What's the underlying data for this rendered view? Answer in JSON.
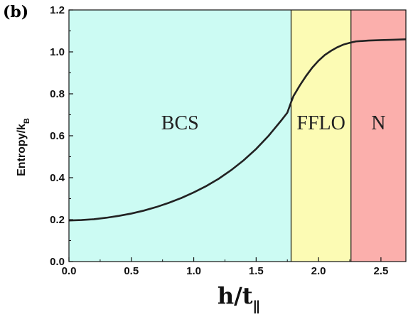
{
  "panel_label": "(b)",
  "chart_data": {
    "type": "line",
    "title": "",
    "xlabel": "h/t",
    "xlabel_subscript": "∥",
    "ylabel": "Entropy/k",
    "ylabel_subscript": "B",
    "xlim": [
      0,
      2.7
    ],
    "ylim": [
      0,
      1.2
    ],
    "xticks": [
      "0.0",
      "0.5",
      "1.0",
      "1.5",
      "2.0",
      "2.5"
    ],
    "yticks": [
      "0.0",
      "0.2",
      "0.4",
      "0.6",
      "0.8",
      "1.0",
      "1.2"
    ],
    "grid": false,
    "regions": [
      {
        "label": "BCS",
        "x_start": 0.0,
        "x_end": 1.78,
        "color": "#ccfbf3"
      },
      {
        "label": "FFLO",
        "x_start": 1.78,
        "x_end": 2.26,
        "color": "#fcfbb4"
      },
      {
        "label": "N",
        "x_start": 2.26,
        "x_end": 2.7,
        "color": "#fbafac"
      }
    ],
    "series": [
      {
        "color": "#222222",
        "x": [
          0.0,
          0.1,
          0.2,
          0.3,
          0.4,
          0.5,
          0.6,
          0.7,
          0.8,
          0.9,
          1.0,
          1.1,
          1.2,
          1.3,
          1.4,
          1.5,
          1.6,
          1.7,
          1.75,
          1.78,
          1.8,
          1.85,
          1.9,
          1.95,
          2.0,
          2.05,
          2.1,
          2.15,
          2.2,
          2.26,
          2.3,
          2.4,
          2.5,
          2.6,
          2.7
        ],
        "y": [
          0.196,
          0.198,
          0.202,
          0.209,
          0.218,
          0.229,
          0.243,
          0.26,
          0.28,
          0.303,
          0.33,
          0.36,
          0.395,
          0.436,
          0.483,
          0.537,
          0.6,
          0.672,
          0.71,
          0.76,
          0.79,
          0.84,
          0.885,
          0.925,
          0.958,
          0.985,
          1.005,
          1.022,
          1.035,
          1.045,
          1.05,
          1.054,
          1.056,
          1.058,
          1.06
        ]
      }
    ]
  }
}
